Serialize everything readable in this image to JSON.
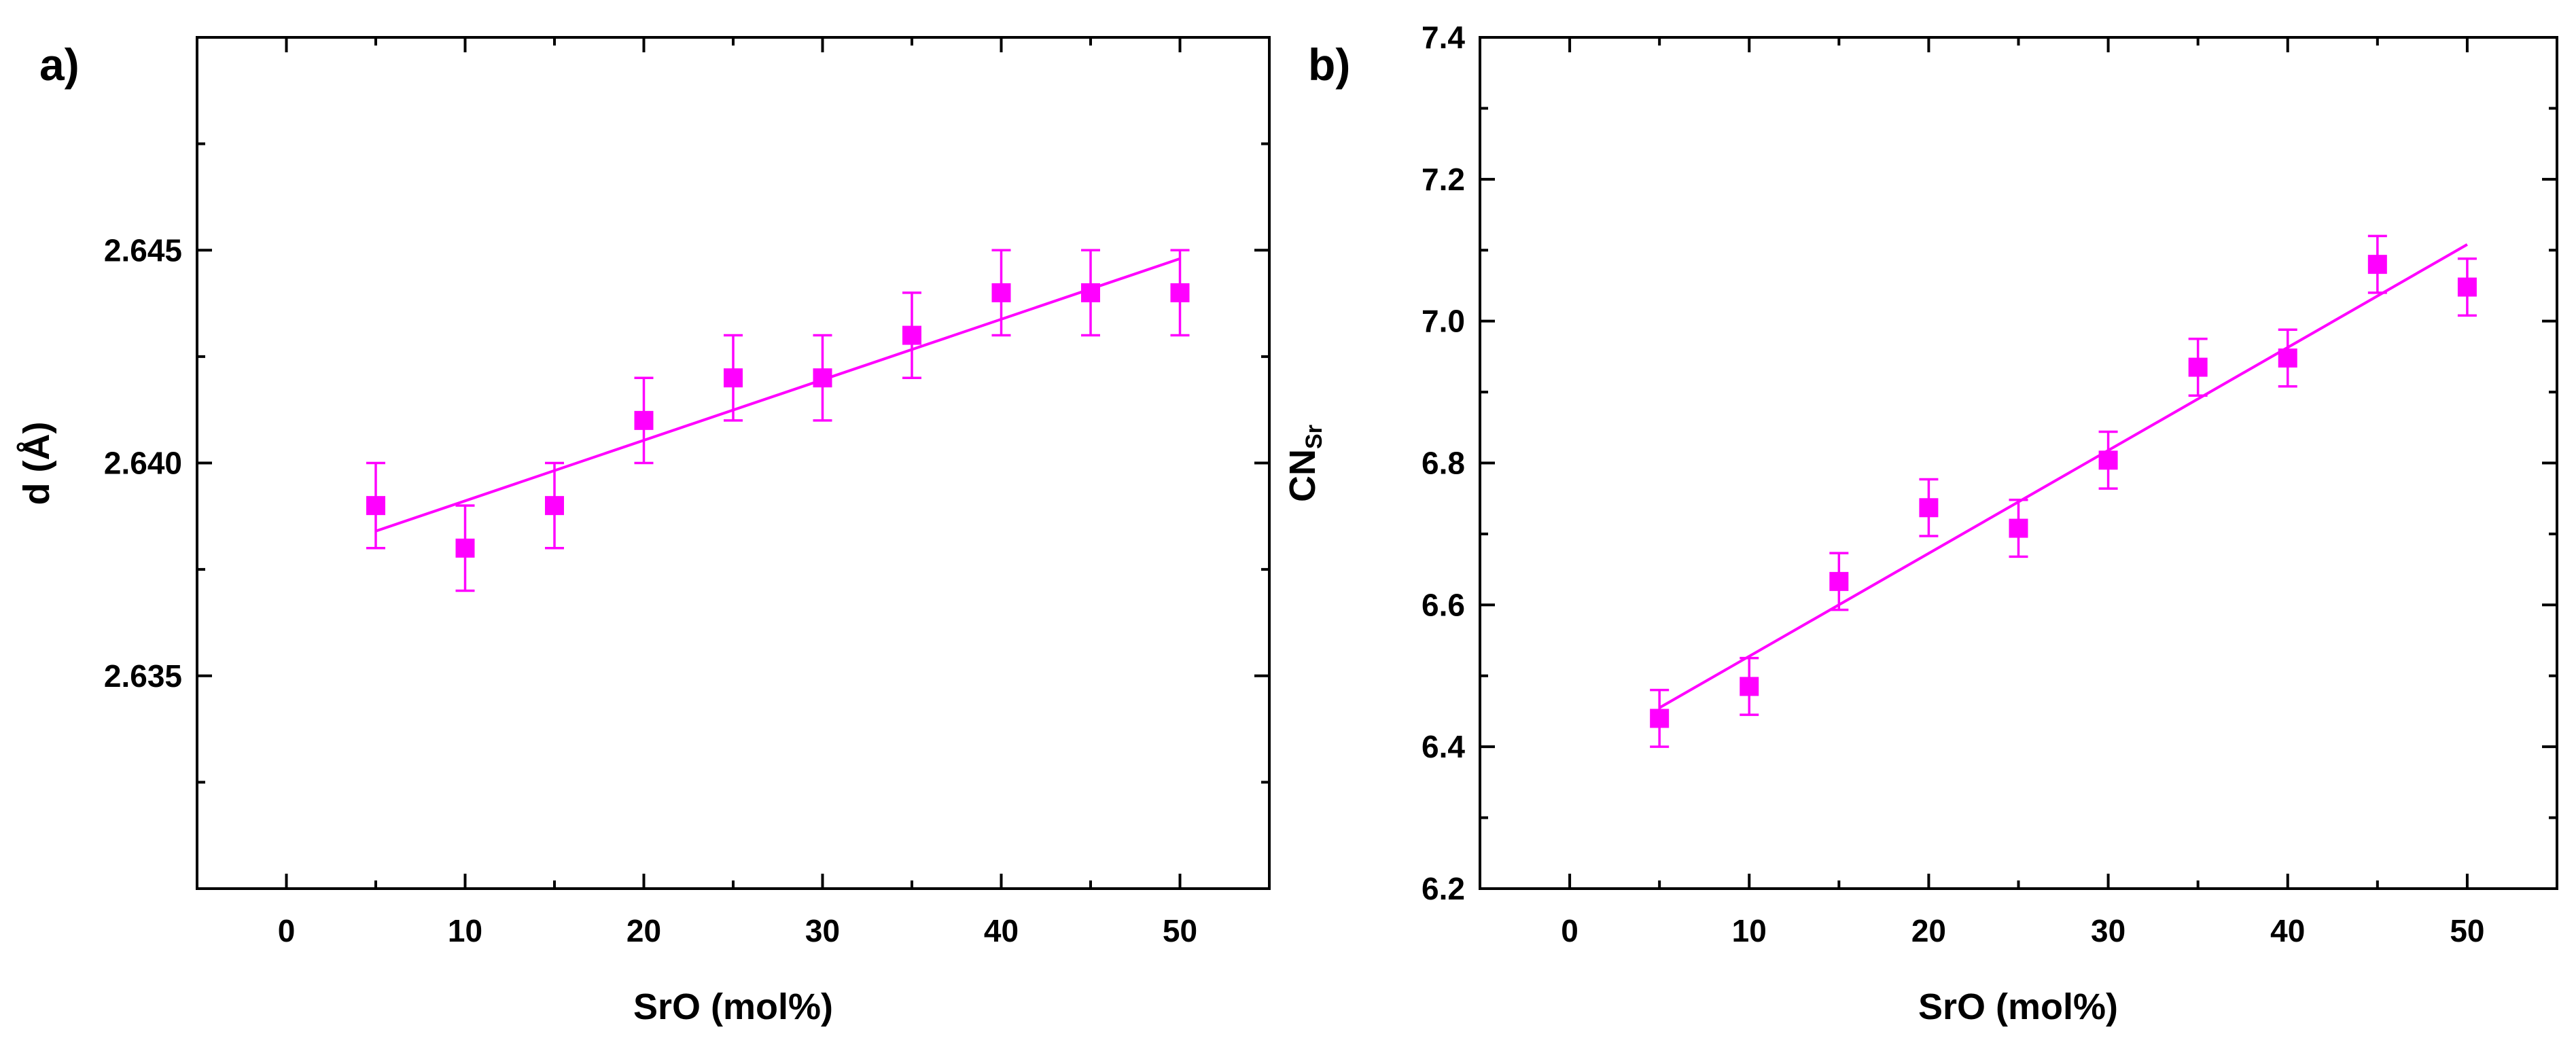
{
  "chart_data": [
    {
      "panel_label": "a)",
      "type": "scatter",
      "xlabel": "SrO (mol%)",
      "ylabel": "d (Å)",
      "xlim": [
        -5,
        55
      ],
      "ylim": [
        2.63,
        2.65
      ],
      "xticks": [
        "0",
        "10",
        "20",
        "30",
        "40",
        "50"
      ],
      "yticks": [
        "2.635",
        "2.640",
        "2.645"
      ],
      "x": [
        5,
        10,
        15,
        20,
        25,
        30,
        35,
        40,
        45,
        50
      ],
      "y": [
        2.639,
        2.638,
        2.639,
        2.641,
        2.642,
        2.642,
        2.643,
        2.644,
        2.644,
        2.644
      ],
      "error": [
        0.001,
        0.001,
        0.001,
        0.001,
        0.001,
        0.001,
        0.001,
        0.001,
        0.001,
        0.001
      ],
      "fit_line": {
        "x": [
          5,
          50
        ],
        "y": [
          2.6384,
          2.6448
        ]
      },
      "color": "#ff00ff"
    },
    {
      "panel_label": "b)",
      "type": "scatter",
      "xlabel": "SrO (mol%)",
      "ylabel_main": "CN",
      "ylabel_sub": "Sr",
      "xlim": [
        -5,
        55
      ],
      "ylim": [
        6.2,
        7.4
      ],
      "xticks": [
        "0",
        "10",
        "20",
        "30",
        "40",
        "50"
      ],
      "yticks": [
        "6.2",
        "6.4",
        "6.6",
        "6.8",
        "7.0",
        "7.2",
        "7.4"
      ],
      "x": [
        5,
        10,
        15,
        20,
        25,
        30,
        35,
        40,
        45,
        50
      ],
      "y": [
        6.44,
        6.485,
        6.633,
        6.737,
        6.708,
        6.804,
        6.935,
        6.948,
        7.08,
        7.048
      ],
      "error": [
        0.04,
        0.04,
        0.04,
        0.04,
        0.04,
        0.04,
        0.04,
        0.04,
        0.04,
        0.04
      ],
      "fit_line": {
        "x": [
          5,
          50
        ],
        "y": [
          6.455,
          7.108
        ]
      },
      "color": "#ff00ff"
    }
  ]
}
